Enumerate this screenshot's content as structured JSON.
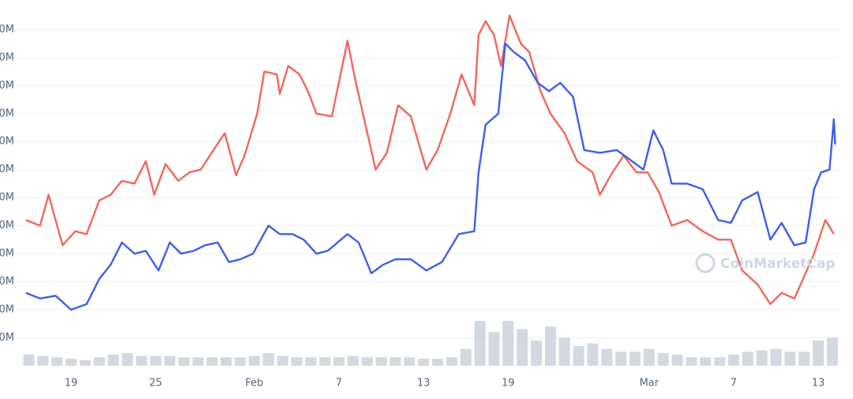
{
  "chart_data": {
    "type": "line",
    "watermark": "CoinMarketCap",
    "xlim": [
      15.75,
      73.23
    ],
    "xticks": [
      {
        "value": 19,
        "label": "19"
      },
      {
        "value": 25,
        "label": "25"
      },
      {
        "value": 32,
        "label": "Feb"
      },
      {
        "value": 38,
        "label": "7"
      },
      {
        "value": 44,
        "label": "13"
      },
      {
        "value": 50,
        "label": "19"
      },
      {
        "value": 60,
        "label": "Mar"
      },
      {
        "value": 66,
        "label": "7"
      },
      {
        "value": 72,
        "label": "13"
      }
    ],
    "ylim": [
      0,
      12.7
    ],
    "yticks": [
      {
        "value": 1,
        "label": "0M"
      },
      {
        "value": 2,
        "label": "0M"
      },
      {
        "value": 3,
        "label": "0M"
      },
      {
        "value": 4,
        "label": "0M"
      },
      {
        "value": 5,
        "label": "0M"
      },
      {
        "value": 6,
        "label": "0M"
      },
      {
        "value": 7,
        "label": "0M"
      },
      {
        "value": 8,
        "label": "0M"
      },
      {
        "value": 9,
        "label": "0M"
      },
      {
        "value": 10,
        "label": "0M"
      },
      {
        "value": 11,
        "label": "0M"
      },
      {
        "value": 12,
        "label": "0M"
      }
    ],
    "grid": true,
    "series": [
      {
        "color": "#f0685a",
        "x": [
          15.8,
          16.8,
          17.4,
          18.4,
          19.3,
          20.1,
          21,
          21.8,
          22.6,
          23.5,
          24.3,
          24.9,
          25.7,
          26.6,
          27.4,
          28.2,
          29.1,
          29.9,
          30.7,
          31.3,
          32.2,
          32.7,
          33.6,
          33.8,
          34.4,
          35.2,
          35.8,
          36.4,
          37.5,
          38.6,
          39.2,
          39.7,
          40.6,
          41.4,
          42.2,
          43.1,
          44.2,
          45,
          45.9,
          46.7,
          47.6,
          47.9,
          48.4,
          49,
          49.5,
          50.1,
          50.9,
          51.5,
          52.3,
          53,
          54,
          54.9,
          56,
          56.5,
          57.4,
          58.2,
          59.1,
          59.9,
          60.7,
          61.6,
          62.7,
          63.8,
          64.9,
          65.8,
          66.6,
          67.7,
          68.6,
          69.4,
          70.3,
          71.1,
          71.7,
          72.5,
          73.1
        ],
        "values": [
          5.2,
          5,
          6.1,
          4.3,
          4.8,
          4.7,
          5.9,
          6.1,
          6.6,
          6.5,
          7.3,
          6.1,
          7.2,
          6.6,
          6.9,
          7,
          7.7,
          8.3,
          6.8,
          7.5,
          9,
          10.5,
          10.4,
          9.7,
          10.7,
          10.4,
          9.8,
          9,
          8.9,
          11.6,
          10.1,
          9,
          7,
          7.6,
          9.3,
          8.9,
          7,
          7.7,
          9,
          10.4,
          9.3,
          11.8,
          12.3,
          11.8,
          10.7,
          12.5,
          11.5,
          11.2,
          9.8,
          9,
          8.3,
          7.3,
          6.9,
          6.1,
          6.9,
          7.5,
          6.9,
          6.9,
          6.2,
          5,
          5.2,
          4.8,
          4.5,
          4.5,
          3.4,
          2.9,
          2.2,
          2.6,
          2.4,
          3.3,
          4,
          5.2,
          4.7
        ]
      },
      {
        "color": "#3f5ee8",
        "x": [
          15.8,
          16.8,
          17.9,
          19,
          20.1,
          21,
          21.8,
          22.6,
          23.5,
          24.3,
          25.2,
          26,
          26.8,
          27.7,
          28.5,
          29.4,
          30.2,
          31,
          31.9,
          33,
          33.8,
          34.7,
          35.5,
          36.4,
          37.2,
          38.6,
          39.4,
          40.3,
          41.1,
          42,
          43.1,
          44.2,
          45.3,
          46.5,
          47.6,
          47.9,
          48.4,
          49.3,
          49.8,
          50.4,
          51.2,
          52.1,
          52.9,
          53.7,
          54.6,
          55.4,
          56.5,
          57.7,
          58.8,
          59.6,
          60.3,
          61,
          61.6,
          62.7,
          63.8,
          64.9,
          65.8,
          66.6,
          67.7,
          68.6,
          69.4,
          70.3,
          71.1,
          71.7,
          72.2,
          72.8,
          73.1,
          73.2
        ],
        "values": [
          2.6,
          2.4,
          2.5,
          2,
          2.2,
          3.1,
          3.6,
          4.4,
          4,
          4.1,
          3.4,
          4.4,
          4,
          4.1,
          4.3,
          4.4,
          3.7,
          3.8,
          4,
          5,
          4.7,
          4.7,
          4.5,
          4,
          4.1,
          4.7,
          4.4,
          3.3,
          3.6,
          3.8,
          3.8,
          3.4,
          3.7,
          4.7,
          4.8,
          6.9,
          8.6,
          9,
          11.5,
          11.2,
          10.9,
          10.1,
          9.8,
          10.1,
          9.6,
          7.7,
          7.6,
          7.7,
          7.3,
          7,
          8.4,
          7.7,
          6.5,
          6.5,
          6.3,
          5.2,
          5.1,
          5.9,
          6.2,
          4.5,
          5.1,
          4.3,
          4.4,
          6.3,
          6.9,
          7,
          8.8,
          7.9
        ]
      }
    ],
    "volume": {
      "color": "#c9ced8",
      "x": [
        16,
        17,
        18,
        19,
        20,
        21,
        22,
        23,
        24,
        25,
        26,
        27,
        28,
        29,
        30,
        31,
        32,
        33,
        34,
        35,
        36,
        37,
        38,
        39,
        40,
        41,
        42,
        43,
        44,
        45,
        46,
        47,
        48,
        49,
        50,
        51,
        52,
        53,
        54,
        55,
        56,
        57,
        58,
        59,
        60,
        61,
        62,
        63,
        64,
        65,
        66,
        67,
        68,
        69,
        70,
        71,
        72,
        73
      ],
      "values": [
        0.4,
        0.35,
        0.3,
        0.25,
        0.2,
        0.3,
        0.4,
        0.45,
        0.35,
        0.35,
        0.35,
        0.3,
        0.3,
        0.3,
        0.3,
        0.3,
        0.35,
        0.45,
        0.35,
        0.3,
        0.3,
        0.3,
        0.3,
        0.35,
        0.3,
        0.3,
        0.3,
        0.3,
        0.25,
        0.25,
        0.3,
        0.6,
        1.6,
        1.2,
        1.6,
        1.3,
        0.9,
        1.4,
        1,
        0.7,
        0.8,
        0.6,
        0.5,
        0.5,
        0.6,
        0.45,
        0.4,
        0.3,
        0.3,
        0.3,
        0.4,
        0.5,
        0.55,
        0.6,
        0.5,
        0.5,
        0.9,
        1
      ]
    }
  }
}
